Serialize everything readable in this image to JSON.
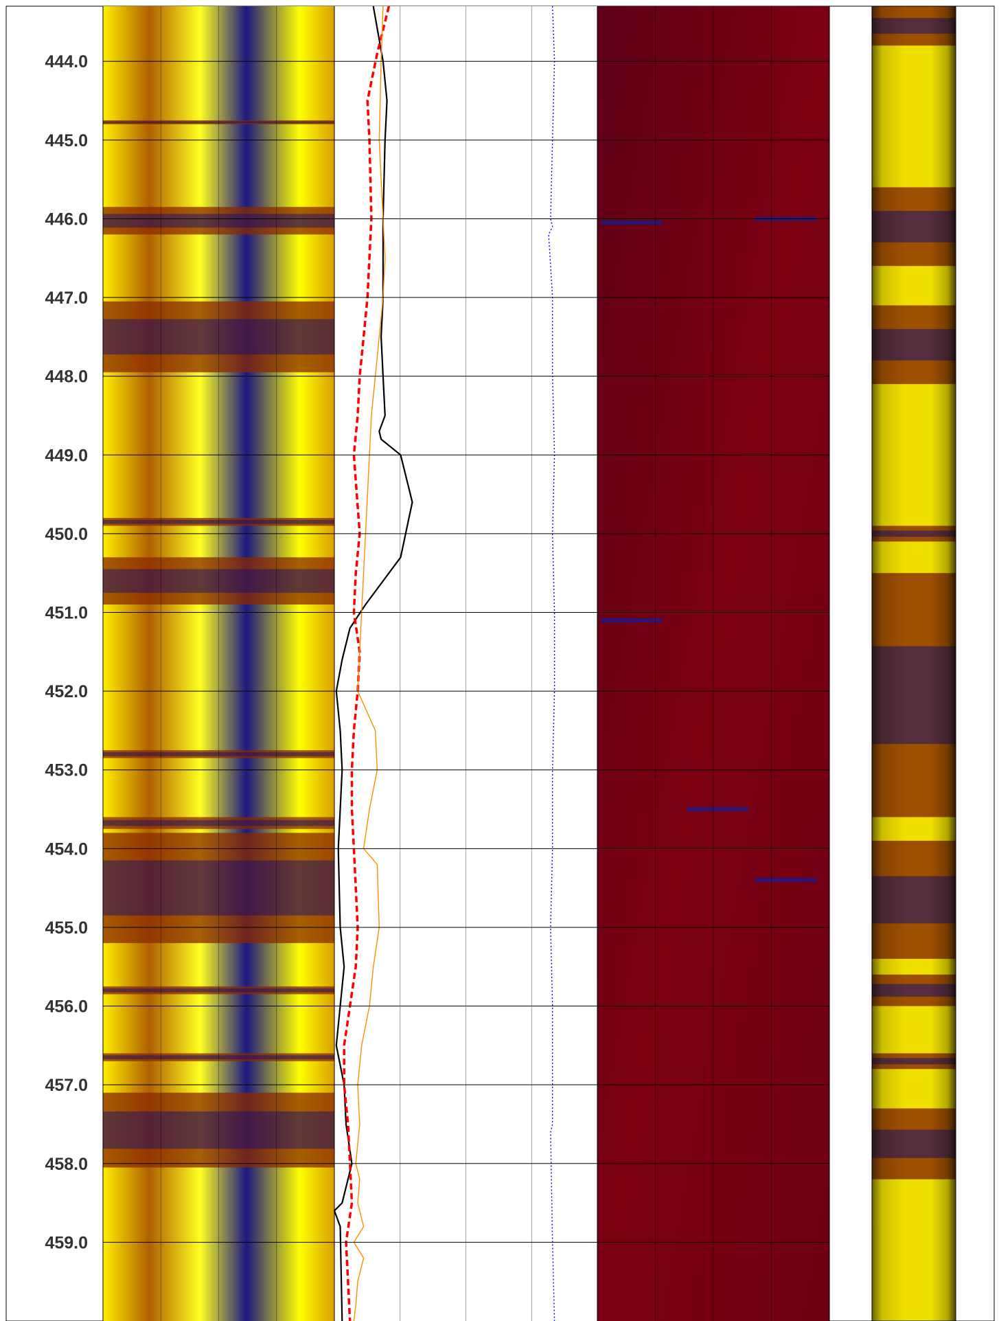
{
  "colors": {
    "image_high": "#ffff00",
    "image_mid": "#8a2a00",
    "image_low": "#0c0c78",
    "amp_background": "#6a0014",
    "curve_black": "#000000",
    "curve_red": "#ff0000",
    "curve_orange": "#ff8c00",
    "curve_blue": "#0000ff",
    "grid": "#000000"
  },
  "chart_data": {
    "type": "line",
    "title": "",
    "depth_axis": {
      "label": "",
      "range": [
        443.3,
        460.0
      ],
      "ticks": [
        "444.0",
        "445.0",
        "446.0",
        "447.0",
        "448.0",
        "449.0",
        "450.0",
        "451.0",
        "452.0",
        "453.0",
        "454.0",
        "455.0",
        "456.0",
        "457.0",
        "458.0",
        "459.0"
      ]
    },
    "tracks": [
      {
        "name": "",
        "type": "image",
        "palette": [
          "#ffff00",
          "#8a2a00",
          "#0c0c78"
        ],
        "dark_bands": [
          {
            "top": 444.75,
            "bottom": 444.8
          },
          {
            "top": 445.85,
            "bottom": 446.2
          },
          {
            "top": 447.05,
            "bottom": 447.95
          },
          {
            "top": 449.8,
            "bottom": 449.9
          },
          {
            "top": 450.3,
            "bottom": 450.9
          },
          {
            "top": 452.75,
            "bottom": 452.85
          },
          {
            "top": 453.6,
            "bottom": 453.75
          },
          {
            "top": 453.8,
            "bottom": 455.2
          },
          {
            "top": 455.75,
            "bottom": 455.85
          },
          {
            "top": 456.6,
            "bottom": 456.7
          },
          {
            "top": 457.1,
            "bottom": 458.05
          }
        ]
      },
      {
        "name": "",
        "type": "curves",
        "grid": true,
        "series": [
          {
            "name": "",
            "color": "#000000",
            "style": "solid",
            "x": [
              2.0,
              2.5,
              2.7,
              2.6,
              2.5,
              2.5,
              2.4,
              2.5,
              2.6,
              2.3,
              2.4,
              3.4,
              4.0,
              3.4,
              1.6,
              0.8,
              0.4,
              0.1,
              0.3,
              0.4,
              0.2,
              0.3,
              0.5,
              0.3,
              0.1,
              0.5,
              0.6,
              0.9,
              0.4,
              0.0,
              0.3,
              0.4
            ],
            "depth": [
              443.3,
              444.0,
              444.5,
              445.0,
              446.0,
              447.0,
              447.5,
              448.0,
              448.5,
              448.7,
              448.8,
              449.0,
              449.6,
              450.3,
              450.9,
              451.2,
              451.6,
              452.0,
              452.5,
              453.0,
              454.0,
              455.0,
              455.5,
              456.0,
              456.5,
              457.0,
              457.5,
              458.0,
              458.5,
              458.6,
              458.8,
              460.0
            ]
          },
          {
            "name": "",
            "color": "#ff0000",
            "style": "dashed",
            "x": [
              2.8,
              2.6,
              2.2,
              1.7,
              1.8,
              1.9,
              1.7,
              1.5,
              1.3,
              1.2,
              1.0,
              1.3,
              1.1,
              1.0,
              1.3,
              1.2,
              1.0,
              0.9,
              0.9,
              1.0,
              1.1,
              1.2,
              1.1,
              0.8,
              0.5,
              0.5,
              0.7,
              0.8,
              0.9,
              0.6,
              0.7,
              0.8
            ],
            "depth": [
              443.3,
              443.5,
              443.9,
              444.5,
              445.0,
              446.0,
              447.0,
              447.5,
              448.0,
              448.5,
              449.0,
              450.0,
              450.5,
              451.0,
              451.5,
              452.0,
              452.5,
              453.0,
              453.5,
              454.0,
              454.5,
              455.0,
              455.5,
              456.0,
              456.5,
              457.0,
              457.5,
              458.0,
              458.5,
              459.0,
              459.5,
              460.0
            ]
          },
          {
            "name": "",
            "color": "#ff8c00",
            "style": "solid",
            "x": [
              2.5,
              2.4,
              2.3,
              2.5,
              2.6,
              2.5,
              2.3,
              2.1,
              1.9,
              1.8,
              1.6,
              1.2,
              2.1,
              2.2,
              1.8,
              1.5,
              2.2,
              2.3,
              2.0,
              1.8,
              1.4,
              1.2,
              1.3,
              1.1,
              1.3,
              1.2,
              1.5,
              1.0,
              1.5,
              1.2,
              1.1,
              1.0
            ],
            "depth": [
              443.3,
              444.0,
              445.0,
              446.0,
              446.5,
              447.0,
              447.5,
              448.0,
              448.5,
              449.0,
              450.0,
              452.0,
              452.5,
              453.0,
              453.5,
              454.0,
              454.2,
              455.0,
              455.5,
              456.0,
              456.5,
              457.0,
              457.5,
              458.0,
              458.2,
              458.5,
              458.8,
              459.0,
              459.2,
              459.5,
              459.8,
              460.0
            ]
          },
          {
            "name": "",
            "color": "#0000ff",
            "style": "dotted",
            "x": [
              11.2,
              11.3,
              11.2,
              11.1,
              11.2,
              11.0,
              11.2,
              11.2,
              11.3,
              11.2,
              11.3,
              11.3,
              11.2,
              11.2,
              11.1,
              11.2,
              11.2,
              11.1,
              11.2,
              11.3
            ],
            "depth": [
              443.3,
              444.0,
              445.0,
              446.0,
              446.1,
              446.2,
              447.0,
              448.0,
              449.0,
              450.0,
              451.0,
              452.0,
              453.0,
              454.0,
              455.0,
              456.0,
              457.5,
              457.6,
              459.0,
              460.0
            ]
          }
        ]
      },
      {
        "name": "",
        "type": "image",
        "palette": [
          "#6a0014",
          "#7c0008",
          "#1a1a8c"
        ],
        "events": [
          {
            "depth": 446.05,
            "side": "left"
          },
          {
            "depth": 446.0,
            "side": "right"
          },
          {
            "depth": 451.1,
            "side": "left"
          },
          {
            "depth": 453.5,
            "side": "mid"
          },
          {
            "depth": 454.4,
            "side": "right"
          }
        ]
      },
      {
        "name": "",
        "type": "image",
        "palette": [
          "#ffff00",
          "#8a2a00",
          "#0c0c78"
        ],
        "dark_bands": [
          {
            "top": 443.3,
            "bottom": 443.8
          },
          {
            "top": 445.6,
            "bottom": 446.6
          },
          {
            "top": 447.1,
            "bottom": 448.1
          },
          {
            "top": 449.9,
            "bottom": 450.1
          },
          {
            "top": 450.5,
            "bottom": 453.6
          },
          {
            "top": 453.9,
            "bottom": 455.4
          },
          {
            "top": 455.6,
            "bottom": 456.0
          },
          {
            "top": 456.6,
            "bottom": 456.8
          },
          {
            "top": 457.3,
            "bottom": 458.2
          }
        ]
      }
    ]
  }
}
